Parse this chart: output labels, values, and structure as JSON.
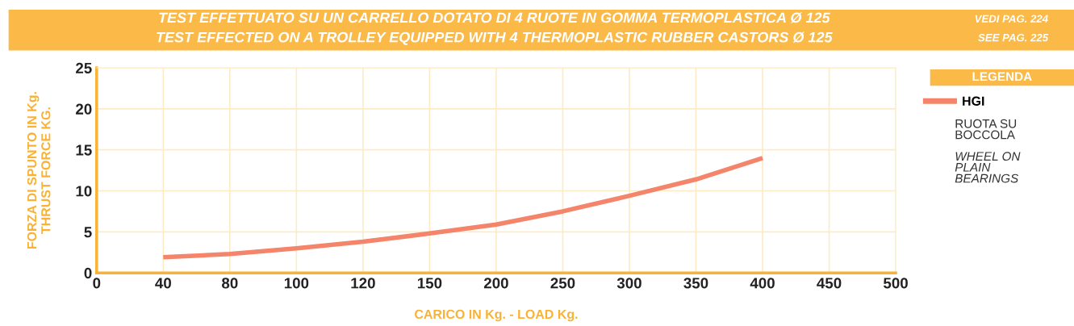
{
  "chart_data": {
    "type": "line",
    "title": "TEST EFFETTUATO SU UN CARRELLO DOTATO DI 4 RUOTE IN GOMMA TERMOPLASTICA Ø 125",
    "subtitle": "TEST EFFECTED ON A TROLLEY EQUIPPED WITH 4 THERMOPLASTIC RUBBER CASTORS Ø 125",
    "xlabel": "CARICO IN Kg. - LOAD Kg.",
    "ylabel": "FORZA DI SPUNTO IN Kg.\nTHRUST FORCE KG.",
    "legend_title": "LEGENDA",
    "annotations": [
      "VEDI PAG. 224",
      "SEE PAG. 225",
      "RUOTA SU\nBOCCOLA",
      "WHEEL ON\nPLAIN\nBEARINGS"
    ],
    "categories": [
      "0",
      "40",
      "80",
      "100",
      "120",
      "150",
      "200",
      "250",
      "300",
      "350",
      "400",
      "450",
      "500"
    ],
    "ylim": [
      0,
      25
    ],
    "yticks": [
      0,
      5,
      10,
      15,
      20,
      25
    ],
    "grid": true,
    "legend": "right",
    "marker": "none",
    "line_style": "solid",
    "series": [
      {
        "name": "HGI",
        "color": "#f4846a",
        "values": [
          null,
          1.9,
          2.3,
          3.0,
          3.8,
          4.8,
          5.9,
          7.5,
          9.4,
          11.4,
          14.0,
          null,
          null
        ]
      }
    ]
  }
}
